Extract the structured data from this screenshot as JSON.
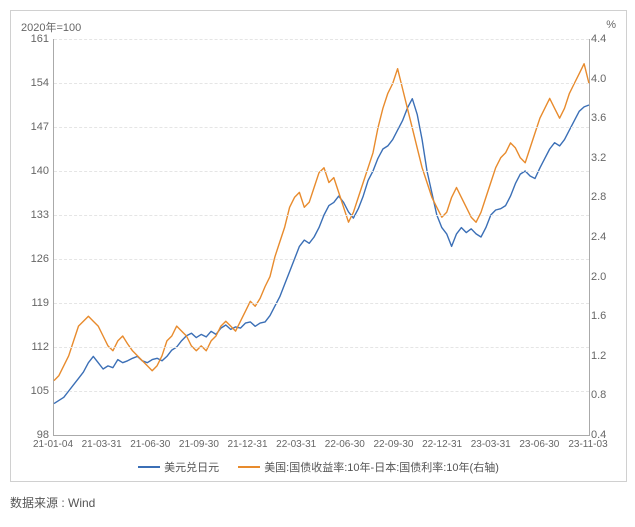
{
  "chart": {
    "type": "line",
    "top_left_label": "2020年=100",
    "top_right_label": "%",
    "background_color": "#ffffff",
    "grid_color": "#e5e5e5",
    "axis_color": "#aaaaaa",
    "label_color": "#666666",
    "label_fontsize": 11,
    "y_left": {
      "min": 98,
      "max": 161,
      "step": 7,
      "ticks": [
        98,
        105,
        112,
        119,
        126,
        133,
        140,
        147,
        154,
        161
      ]
    },
    "y_right": {
      "min": 0.4,
      "max": 4.4,
      "ticks": [
        0.4,
        0.8,
        1.2,
        1.6,
        2.0,
        2.4,
        2.8,
        3.2,
        3.6,
        4.0,
        4.4
      ]
    },
    "x_ticks": [
      "21-01-04",
      "21-03-31",
      "21-06-30",
      "21-09-30",
      "21-12-31",
      "22-03-31",
      "22-06-30",
      "22-09-30",
      "22-12-31",
      "23-03-31",
      "23-06-30",
      "23-11-03"
    ],
    "legend": {
      "items": [
        {
          "label": "美元兑日元",
          "color": "#3b6fb6"
        },
        {
          "label": "美国:国债收益率:10年-日本:国债利率:10年(右轴)",
          "color": "#e88b2d"
        }
      ]
    },
    "series": [
      {
        "name": "usdjpy",
        "axis": "left",
        "color": "#3b6fb6",
        "line_width": 1.4,
        "data": [
          103,
          103.5,
          104,
          105,
          106,
          107,
          108,
          109.5,
          110.5,
          109.5,
          108.5,
          109,
          108.7,
          110,
          109.5,
          109.8,
          110.2,
          110.5,
          109.8,
          109.5,
          110,
          110.2,
          109.8,
          110.5,
          111.5,
          112,
          113,
          113.8,
          114.2,
          113.5,
          114,
          113.6,
          114.5,
          114,
          115,
          115.5,
          114.8,
          115.2,
          115,
          115.8,
          116,
          115.3,
          115.8,
          116,
          117,
          118.5,
          120,
          122,
          124,
          126,
          128,
          129,
          128.5,
          129.5,
          131,
          133,
          134.5,
          135,
          136,
          135,
          133.5,
          132.5,
          134,
          136,
          138.5,
          140,
          142,
          143.5,
          144,
          145,
          146.5,
          148,
          150,
          151.5,
          149,
          145,
          140,
          136.5,
          133,
          131,
          130,
          128,
          130,
          131,
          130.2,
          130.8,
          130,
          129.5,
          131,
          133,
          133.8,
          134,
          134.5,
          136,
          138,
          139.5,
          140,
          139.2,
          138.8,
          140.5,
          142,
          143.5,
          144.5,
          144,
          145,
          146.5,
          148,
          149.5,
          150.2,
          150.5
        ]
      },
      {
        "name": "yield_spread",
        "axis": "right",
        "color": "#e88b2d",
        "line_width": 1.4,
        "data": [
          0.95,
          1.0,
          1.1,
          1.2,
          1.35,
          1.5,
          1.55,
          1.6,
          1.55,
          1.5,
          1.4,
          1.3,
          1.25,
          1.35,
          1.4,
          1.32,
          1.25,
          1.2,
          1.15,
          1.1,
          1.05,
          1.1,
          1.2,
          1.35,
          1.4,
          1.5,
          1.45,
          1.4,
          1.3,
          1.25,
          1.3,
          1.25,
          1.35,
          1.4,
          1.5,
          1.55,
          1.5,
          1.45,
          1.55,
          1.65,
          1.75,
          1.7,
          1.78,
          1.9,
          2.0,
          2.2,
          2.35,
          2.5,
          2.7,
          2.8,
          2.85,
          2.7,
          2.75,
          2.9,
          3.05,
          3.1,
          2.95,
          3.0,
          2.85,
          2.7,
          2.55,
          2.65,
          2.8,
          2.95,
          3.1,
          3.25,
          3.5,
          3.7,
          3.85,
          3.95,
          4.1,
          3.9,
          3.7,
          3.5,
          3.3,
          3.1,
          2.95,
          2.8,
          2.7,
          2.6,
          2.65,
          2.8,
          2.9,
          2.8,
          2.7,
          2.6,
          2.55,
          2.65,
          2.8,
          2.95,
          3.1,
          3.2,
          3.25,
          3.35,
          3.3,
          3.2,
          3.15,
          3.3,
          3.45,
          3.6,
          3.7,
          3.8,
          3.7,
          3.6,
          3.7,
          3.85,
          3.95,
          4.05,
          4.15,
          3.95
        ]
      }
    ]
  },
  "source": {
    "label": "数据来源 : ",
    "value": "Wind"
  }
}
